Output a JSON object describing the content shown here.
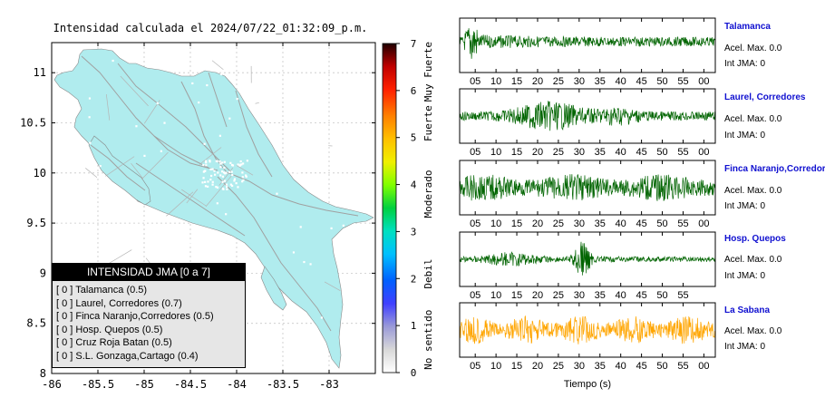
{
  "map": {
    "title": "Intensidad calculada el 2024/07/22_01:32:09_p.m.",
    "x_ticks": [
      "-86",
      "-85.5",
      "-85",
      "-84.5",
      "-84",
      "-83.5",
      "-83"
    ],
    "y_ticks": [
      "11",
      "10.5",
      "10",
      "9.5",
      "9",
      "8.5",
      "8"
    ],
    "xlim": [
      -86,
      -82.5
    ],
    "ylim": [
      8,
      11.3
    ],
    "land_color": "#b0ecee",
    "road_color": "#a0a0a0"
  },
  "legend": {
    "title": "INTENSIDAD JMA [0 a 7]",
    "items": [
      "[ 0 ]  Talamanca (0.5)",
      "[ 0 ]  Laurel, Corredores (0.7)",
      "[ 0 ]  Finca Naranjo,Corredores (0.5)",
      "[ 0 ]  Hosp. Quepos (0.5)",
      "[ 0 ]  Cruz Roja Batan (0.5)",
      "[ 0 ]  S.L. Gonzaga,Cartago (0.4)"
    ]
  },
  "colorbar": {
    "ticks": [
      "0",
      "1",
      "2",
      "3",
      "4",
      "5",
      "6",
      "7"
    ],
    "labels": [
      "No sentido",
      "Debil",
      "Moderado",
      "Fuerte",
      "Muy Fuerte"
    ],
    "range": [
      0,
      7
    ]
  },
  "chart_data": {
    "type": "line",
    "xlabel": "Tiempo (s)",
    "x_tick_labels": [
      "05",
      "10",
      "15",
      "20",
      "25",
      "30",
      "35",
      "40",
      "45",
      "50",
      "55",
      "00"
    ],
    "panels": [
      {
        "station": "Talamanca",
        "acel_label": "Acel. Max. 0.0",
        "int_label": "Int JMA: 0",
        "color": "#006400",
        "x_tick_labels": [
          "05",
          "10",
          "15",
          "20",
          "25",
          "30",
          "35",
          "40",
          "45",
          "50",
          "55",
          "00"
        ]
      },
      {
        "station": "Laurel, Corredores",
        "acel_label": "Acel. Max. 0.0",
        "int_label": "Int JMA: 0",
        "color": "#006400",
        "x_tick_labels": [
          "05",
          "10",
          "15",
          "20",
          "25",
          "30",
          "35",
          "40",
          "45",
          "50",
          "55",
          "00"
        ]
      },
      {
        "station": "Finca Naranjo,Corredores",
        "acel_label": "Acel. Max. 0.0",
        "int_label": "Int JMA: 0",
        "color": "#006400",
        "x_tick_labels": [
          "05",
          "10",
          "15",
          "20",
          "25",
          "30",
          "35",
          "40",
          "45",
          "50",
          "55",
          "00"
        ]
      },
      {
        "station": "Hosp. Quepos",
        "acel_label": "Acel. Max. 0.0",
        "int_label": "Int JMA: 0",
        "color": "#006400",
        "x_tick_labels": [
          "05",
          "10",
          "15",
          "20",
          "25",
          "30",
          "35",
          "40",
          "45",
          "50",
          "55"
        ]
      },
      {
        "station": "La Sabana",
        "acel_label": "Acel. Max. 0.0",
        "int_label": "Int JMA: 0",
        "color": "#ffa500",
        "x_tick_labels": [
          "05",
          "10",
          "15",
          "20",
          "25",
          "30",
          "35",
          "40",
          "45",
          "50",
          "55",
          "00"
        ]
      }
    ]
  }
}
